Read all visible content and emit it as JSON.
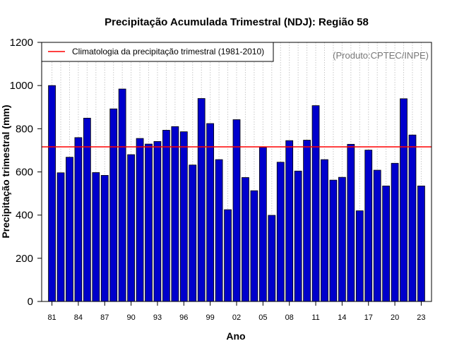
{
  "chart_data": {
    "type": "bar",
    "title": "Precipitação Acumulada Trimestral (NDJ): Região 58",
    "xlabel": "Ano",
    "ylabel": "Precipitação trimestral (mm)",
    "ylim": [
      0,
      1200
    ],
    "yticks": [
      0,
      200,
      400,
      600,
      800,
      1000,
      1200
    ],
    "x_tick_labels": [
      "81",
      "84",
      "87",
      "90",
      "93",
      "96",
      "99",
      "02",
      "05",
      "08",
      "11",
      "14",
      "17",
      "20",
      "23"
    ],
    "x_tick_years": [
      1981,
      1984,
      1987,
      1990,
      1993,
      1996,
      1999,
      2002,
      2005,
      2008,
      2011,
      2014,
      2017,
      2020,
      2023
    ],
    "grid": "vertical dotted lines per year",
    "categories": [
      1981,
      1982,
      1983,
      1984,
      1985,
      1986,
      1987,
      1988,
      1989,
      1990,
      1991,
      1992,
      1993,
      1994,
      1995,
      1996,
      1997,
      1998,
      1999,
      2000,
      2001,
      2002,
      2003,
      2004,
      2005,
      2006,
      2007,
      2008,
      2009,
      2010,
      2011,
      2012,
      2013,
      2014,
      2015,
      2016,
      2017,
      2018,
      2019,
      2020,
      2021,
      2022,
      2023
    ],
    "values": [
      1000,
      596,
      668,
      759,
      849,
      597,
      584,
      892,
      984,
      680,
      755,
      729,
      741,
      793,
      810,
      786,
      632,
      940,
      824,
      657,
      425,
      842,
      574,
      513,
      714,
      399,
      645,
      745,
      604,
      747,
      907,
      657,
      562,
      575,
      728,
      420,
      701,
      608,
      535,
      640,
      939,
      771,
      535
    ],
    "climatology": {
      "value": 716,
      "label": "Climatologia da precipitação trimestral (1981-2010)",
      "color": "#ff0000"
    },
    "legend_position": "top-left",
    "bar_color": "#0000cc",
    "bar_edge_color": "#000000",
    "product_label": "(Produto:CPTEC/INPE)"
  }
}
